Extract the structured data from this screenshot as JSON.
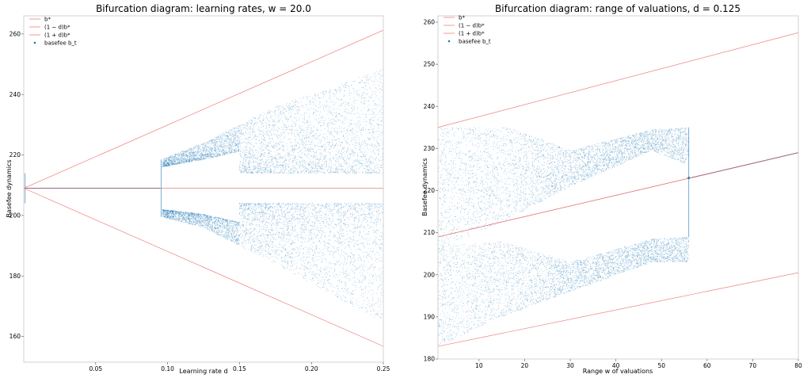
{
  "colors": {
    "threshold": "#f08080",
    "mid": "#e06060",
    "dots": "#1f77b4"
  },
  "chart_data": [
    {
      "type": "scatter",
      "title": "Bifurcation diagram: learning rates, w = 20.0",
      "xlabel": "Learning rate d",
      "ylabel": "Basefee dynamics",
      "xlim": [
        0.0,
        0.25
      ],
      "ylim": [
        151.5,
        266
      ],
      "xticks": [
        0.05,
        0.1,
        0.15,
        0.2,
        0.25
      ],
      "xtick_labels": [
        "0.05",
        "0.10",
        "0.15",
        "0.20",
        "0.25"
      ],
      "yticks": [
        160,
        180,
        200,
        220,
        240,
        260
      ],
      "ytick_labels": [
        "160",
        "180",
        "200",
        "220",
        "240",
        "260"
      ],
      "grid": false,
      "legend_position": "top-left",
      "legend": [
        "b*",
        "(1 − d)b*",
        "(1 + d)b*",
        "basefee b_t"
      ],
      "b_star": 209.0,
      "lines": [
        {
          "name": "b*",
          "x": [
            0.0,
            0.25
          ],
          "y": [
            209.0,
            209.0
          ]
        },
        {
          "name": "(1 − d)b*",
          "x": [
            0.0,
            0.25
          ],
          "y": [
            209.0,
            156.75
          ]
        },
        {
          "name": "(1 + d)b*",
          "x": [
            0.0,
            0.25
          ],
          "y": [
            209.0,
            261.25
          ]
        }
      ],
      "scatter_envelope": {
        "series": "basefee b_t",
        "description_points": [
          {
            "x": 0.0,
            "upper": 209.0,
            "lower": 209.0
          },
          {
            "x": 0.095,
            "upper": 209.0,
            "lower": 209.0
          },
          {
            "x": 0.096,
            "upper": 218.5,
            "lower": 199.5
          },
          {
            "x": 0.125,
            "upper": 224.0,
            "lower": 196.0
          },
          {
            "x": 0.175,
            "upper": 236.0,
            "lower": 184.0
          },
          {
            "x": 0.25,
            "upper": 248.5,
            "lower": 164.5
          }
        ]
      }
    },
    {
      "type": "scatter",
      "title": "Bifurcation diagram: range of valuations, d = 0.125",
      "xlabel": "Range w of valuations",
      "ylabel": "Basefee dynamics",
      "xlim": [
        1.0,
        80.0
      ],
      "ylim": [
        180,
        261.5
      ],
      "xticks": [
        10,
        20,
        30,
        40,
        50,
        60,
        70,
        80
      ],
      "xtick_labels": [
        "10",
        "20",
        "30",
        "40",
        "50",
        "60",
        "70",
        "80"
      ],
      "yticks": [
        180,
        190,
        200,
        210,
        220,
        230,
        240,
        250,
        260
      ],
      "ytick_labels": [
        "180",
        "190",
        "200",
        "210",
        "220",
        "230",
        "240",
        "250",
        "260"
      ],
      "grid": false,
      "legend_position": "top-left",
      "legend": [
        "b*",
        "(1 − d)b*",
        "(1 + d)b*",
        "basefee b_t"
      ],
      "lines": [
        {
          "name": "b*",
          "x": [
            1.0,
            80.0
          ],
          "y": [
            209.0,
            229.0
          ]
        },
        {
          "name": "(1 − d)b*",
          "x": [
            1.0,
            80.0
          ],
          "y": [
            183.0,
            200.5
          ]
        },
        {
          "name": "(1 + d)b*",
          "x": [
            1.0,
            80.0
          ],
          "y": [
            235.0,
            257.5
          ]
        }
      ],
      "scatter_envelope": {
        "series": "basefee b_t",
        "upper_band": [
          {
            "x": 1.0,
            "top": 235.0,
            "bottom": 206.0
          },
          {
            "x": 17.0,
            "top": 235.0,
            "bottom": 213.5
          },
          {
            "x": 30.0,
            "top": 229.5,
            "bottom": 221.0
          },
          {
            "x": 48.0,
            "top": 234.5,
            "bottom": 229.5
          },
          {
            "x": 56.0,
            "top": 235.0,
            "bottom": 226.0
          }
        ],
        "lower_band": [
          {
            "x": 1.0,
            "top": 207.0,
            "bottom": 183.0
          },
          {
            "x": 15.0,
            "top": 208.0,
            "bottom": 190.0
          },
          {
            "x": 30.0,
            "top": 203.0,
            "bottom": 196.0
          },
          {
            "x": 48.0,
            "top": 208.5,
            "bottom": 203.0
          },
          {
            "x": 56.0,
            "top": 209.0,
            "bottom": 203.0
          }
        ],
        "merge": {
          "x": 56.0,
          "y": 223.0
        }
      }
    }
  ]
}
